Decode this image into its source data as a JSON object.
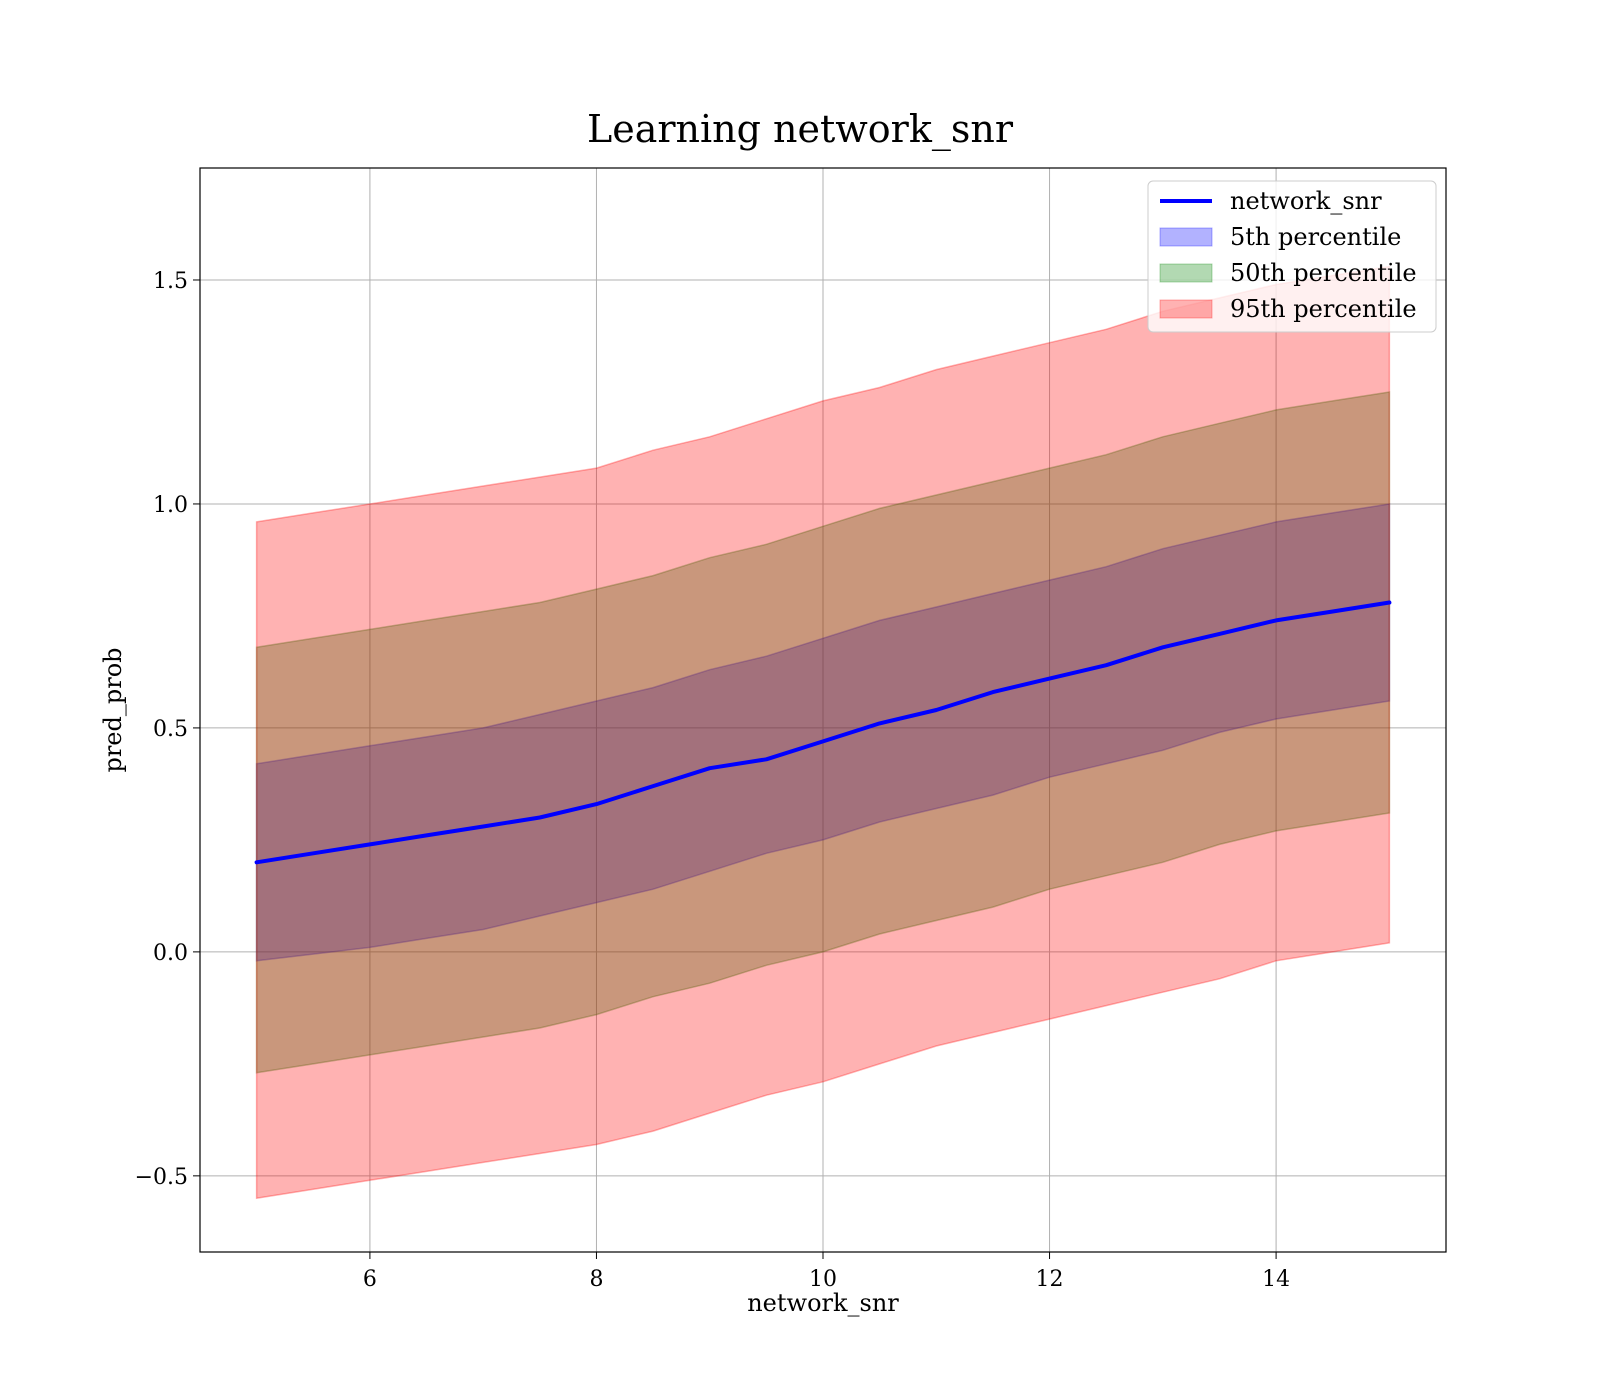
{
  "chart_data": {
    "type": "line",
    "title": "Learning network_snr",
    "xlabel": "network_snr",
    "ylabel": "pred_prob",
    "xlim": [
      4.5,
      15.5
    ],
    "ylim": [
      -0.67,
      1.75
    ],
    "xticks": [
      6,
      8,
      10,
      12,
      14
    ],
    "xtick_labels": [
      "6",
      "8",
      "10",
      "12",
      "14"
    ],
    "yticks": [
      -0.5,
      0.0,
      0.5,
      1.0,
      1.5
    ],
    "ytick_labels": [
      "−0.5",
      "0.0",
      "0.5",
      "1.0",
      "1.5"
    ],
    "grid": true,
    "legend_position": "upper right",
    "x": [
      5.0,
      5.5,
      6.0,
      6.5,
      7.0,
      7.5,
      8.0,
      8.5,
      9.0,
      9.5,
      10.0,
      10.5,
      11.0,
      11.5,
      12.0,
      12.5,
      13.0,
      13.5,
      14.0,
      14.5,
      15.0
    ],
    "series": [
      {
        "name": "network_snr",
        "kind": "line",
        "color": "#0000ff",
        "values": [
          0.2,
          0.22,
          0.24,
          0.26,
          0.28,
          0.3,
          0.33,
          0.37,
          0.41,
          0.43,
          0.47,
          0.51,
          0.54,
          0.58,
          0.61,
          0.64,
          0.68,
          0.71,
          0.74,
          0.76,
          0.78
        ]
      },
      {
        "name": "5th percentile",
        "kind": "band",
        "color": "#0000ff",
        "opacity": 0.3,
        "lower": [
          -0.02,
          -0.005,
          0.01,
          0.03,
          0.05,
          0.08,
          0.11,
          0.14,
          0.18,
          0.22,
          0.25,
          0.29,
          0.32,
          0.35,
          0.39,
          0.42,
          0.45,
          0.49,
          0.52,
          0.54,
          0.56
        ],
        "upper": [
          0.42,
          0.44,
          0.46,
          0.48,
          0.5,
          0.53,
          0.56,
          0.59,
          0.63,
          0.66,
          0.7,
          0.74,
          0.77,
          0.8,
          0.83,
          0.86,
          0.9,
          0.93,
          0.96,
          0.98,
          1.0
        ]
      },
      {
        "name": "50th percentile",
        "kind": "band",
        "color": "#008000",
        "opacity": 0.3,
        "lower": [
          -0.27,
          -0.25,
          -0.23,
          -0.21,
          -0.19,
          -0.17,
          -0.14,
          -0.1,
          -0.07,
          -0.03,
          0.0,
          0.04,
          0.07,
          0.1,
          0.14,
          0.17,
          0.2,
          0.24,
          0.27,
          0.29,
          0.31
        ],
        "upper": [
          0.68,
          0.7,
          0.72,
          0.74,
          0.76,
          0.78,
          0.81,
          0.84,
          0.88,
          0.91,
          0.95,
          0.99,
          1.02,
          1.05,
          1.08,
          1.11,
          1.15,
          1.18,
          1.21,
          1.23,
          1.25
        ]
      },
      {
        "name": "95th percentile",
        "kind": "band",
        "color": "#ff0000",
        "opacity": 0.3,
        "lower": [
          -0.55,
          -0.53,
          -0.51,
          -0.49,
          -0.47,
          -0.45,
          -0.43,
          -0.4,
          -0.36,
          -0.32,
          -0.29,
          -0.25,
          -0.21,
          -0.18,
          -0.15,
          -0.12,
          -0.09,
          -0.06,
          -0.02,
          0.0,
          0.02
        ],
        "upper": [
          0.96,
          0.98,
          1.0,
          1.02,
          1.04,
          1.06,
          1.08,
          1.12,
          1.15,
          1.19,
          1.23,
          1.26,
          1.3,
          1.33,
          1.36,
          1.39,
          1.43,
          1.46,
          1.49,
          1.51,
          1.53
        ]
      }
    ]
  }
}
